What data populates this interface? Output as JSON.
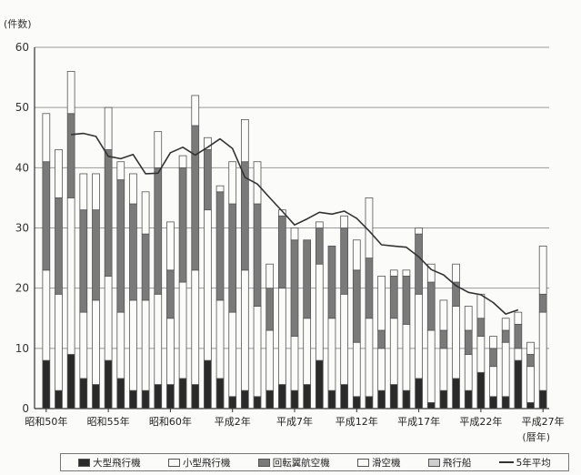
{
  "chart_data": {
    "type": "bar",
    "stacked": true,
    "y_unit": "(件数)",
    "x_unit": "(暦年)",
    "ylim": [
      0,
      60
    ],
    "yticks": [
      0,
      10,
      20,
      30,
      40,
      50,
      60
    ],
    "grid": true,
    "x_labels": [
      {
        "index": 0,
        "text": "昭和50年"
      },
      {
        "index": 5,
        "text": "昭和55年"
      },
      {
        "index": 10,
        "text": "昭和60年"
      },
      {
        "index": 15,
        "text": "平成2年"
      },
      {
        "index": 20,
        "text": "平成7年"
      },
      {
        "index": 25,
        "text": "平成12年"
      },
      {
        "index": 30,
        "text": "平成17年"
      },
      {
        "index": 35,
        "text": "平成22年"
      },
      {
        "index": 40,
        "text": "平成27年"
      }
    ],
    "n_bars": 41,
    "series": [
      {
        "name": "大型飛行機",
        "color": "#2a2a2a",
        "values": [
          8,
          3,
          9,
          5,
          4,
          8,
          5,
          3,
          3,
          4,
          4,
          5,
          4,
          8,
          5,
          2,
          3,
          2,
          3,
          4,
          3,
          4,
          8,
          3,
          4,
          2,
          2,
          3,
          4,
          3,
          5,
          1,
          3,
          5,
          3,
          6,
          2,
          2,
          8,
          1,
          3
        ]
      },
      {
        "name": "小型飛行機",
        "color": "#fbfbf9",
        "values": [
          15,
          16,
          26,
          11,
          14,
          14,
          11,
          15,
          15,
          15,
          11,
          16,
          19,
          25,
          13,
          14,
          20,
          15,
          10,
          16,
          9,
          11,
          16,
          12,
          15,
          9,
          13,
          7,
          11,
          11,
          14,
          12,
          7,
          12,
          6,
          6,
          5,
          9,
          2,
          6,
          13
        ]
      },
      {
        "name": "回転翼航空機",
        "color": "#7a7a7a",
        "values": [
          18,
          16,
          14,
          17,
          15,
          21,
          22,
          16,
          11,
          21,
          8,
          19,
          24,
          10,
          18,
          18,
          18,
          17,
          7,
          12,
          16,
          13,
          6,
          12,
          11,
          12,
          10,
          3,
          7,
          8,
          10,
          8,
          3,
          4,
          4,
          3,
          3,
          2,
          4,
          2,
          3
        ]
      },
      {
        "name": "滑空機",
        "color": "#fbfbf9",
        "values": [
          8,
          8,
          7,
          6,
          6,
          7,
          3,
          5,
          7,
          6,
          8,
          2,
          5,
          2,
          1,
          7,
          7,
          7,
          4,
          1,
          2,
          0,
          1,
          0,
          2,
          5,
          10,
          9,
          1,
          1,
          1,
          3,
          5,
          3,
          4,
          4,
          2,
          2,
          2,
          2,
          8
        ]
      },
      {
        "name": "飛行船",
        "color": "#cfcfcf",
        "values": [
          0,
          0,
          0,
          0,
          0,
          0,
          0,
          0,
          0,
          0,
          0,
          0,
          0,
          0,
          0,
          0,
          0,
          0,
          0,
          0,
          0,
          0,
          0,
          0,
          0,
          0,
          0,
          0,
          0,
          0,
          0,
          0,
          0,
          0,
          0,
          0,
          0,
          0,
          0,
          0,
          0
        ]
      }
    ],
    "line": {
      "name": "5年平均",
      "start_index": 2,
      "values": [
        45.5,
        45.7,
        45.2,
        41.9,
        41.5,
        42.2,
        39,
        39.1,
        42.5,
        43.4,
        42.1,
        43.4,
        44.8,
        43.2,
        38.4,
        37.3,
        35,
        32.8,
        30.5,
        31.5,
        32.6,
        32.3,
        32.8,
        31.6,
        29.5,
        27.2,
        27,
        26.8,
        25.2,
        23.1,
        22.2,
        20.4,
        19.3,
        18.9,
        17.6,
        15.7,
        16.4
      ]
    }
  },
  "legend": {
    "items": [
      {
        "label": "大型飛行機",
        "kind": "swatch",
        "color": "#2a2a2a"
      },
      {
        "label": "小型飛行機",
        "kind": "swatch",
        "color": "#fbfbf9"
      },
      {
        "label": "回転翼航空機",
        "kind": "swatch",
        "color": "#7a7a7a"
      },
      {
        "label": "滑空機",
        "kind": "swatch",
        "color": "#fbfbf9"
      },
      {
        "label": "飛行船",
        "kind": "swatch",
        "color": "#cfcfcf"
      },
      {
        "label": "5年平均",
        "kind": "line",
        "color": "#333333"
      }
    ]
  }
}
